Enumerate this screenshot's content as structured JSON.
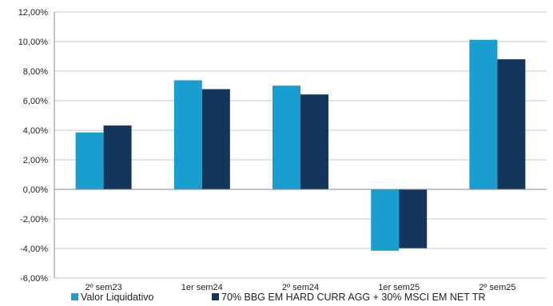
{
  "chart_data": {
    "type": "bar",
    "categories": [
      "2º sem23",
      "1er sem24",
      "2º sem24",
      "1er sem25",
      "2º sem25"
    ],
    "series": [
      {
        "name": "Valor Liquidativo",
        "values": [
          3.85,
          7.38,
          7.02,
          -4.15,
          10.12
        ]
      },
      {
        "name": "70% BBG EM HARD CURR AGG + 30% MSCI EM NET TR",
        "values": [
          4.32,
          6.78,
          6.42,
          -3.98,
          8.8
        ]
      }
    ],
    "ylim": [
      -6,
      12
    ],
    "yticks": [
      12,
      10,
      8,
      6,
      4,
      2,
      0,
      -2,
      -4,
      -6
    ],
    "ytick_labels": [
      "12,00%",
      "10,00%",
      "8,00%",
      "6,00%",
      "4,00%",
      "2,00%",
      "0,00%",
      "-2,00%",
      "-4,00%",
      "-6,00%"
    ],
    "grid": true,
    "legend_position": "bottom",
    "colors": [
      "#1a9dcf",
      "#15365c"
    ],
    "grid_color": "#c8c8c8",
    "axis_color": "#888888"
  }
}
